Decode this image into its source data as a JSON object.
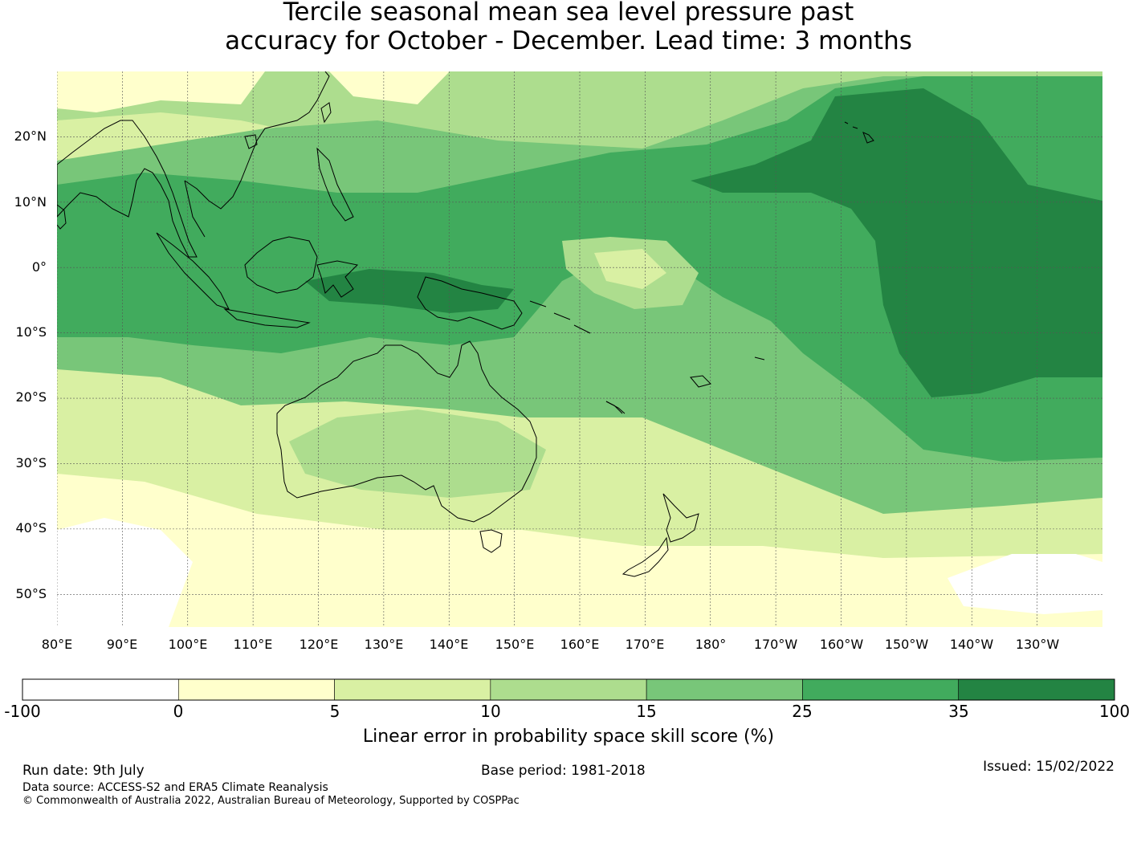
{
  "title": {
    "line1": "Tercile seasonal mean sea level pressure past",
    "line2": "accuracy for October - December. Lead time: 3 months"
  },
  "map": {
    "lat_labels": [
      "20°N",
      "10°N",
      "0°",
      "10°S",
      "20°S",
      "30°S",
      "40°S",
      "50°S"
    ],
    "lon_labels": [
      "80°E",
      "90°E",
      "100°E",
      "110°E",
      "120°E",
      "130°E",
      "140°E",
      "150°E",
      "160°E",
      "170°E",
      "180°",
      "170°W",
      "160°W",
      "150°W",
      "140°W",
      "130°W"
    ],
    "lon_range": [
      80,
      240
    ],
    "lat_range": [
      -55,
      30
    ]
  },
  "colorbar": {
    "ticks": [
      "-100",
      "0",
      "5",
      "10",
      "15",
      "25",
      "35",
      "100"
    ],
    "colors": [
      "#ffffff",
      "#ffffcc",
      "#d9f0a3",
      "#addd8e",
      "#78c679",
      "#41ab5d",
      "#238443"
    ],
    "label": "Linear error in probability space skill score (%)"
  },
  "footer": {
    "run_date": "Run date: 9th July",
    "base_period": "Base period: 1981-2018",
    "issued": "Issued: 15/02/2022",
    "data_source": "Data source: ACCESS-S2 and ERA5 Climate Reanalysis",
    "copyright": "© Commonwealth of Australia 2022, Australian Bureau of Meteorology, Supported by COSPPac"
  }
}
